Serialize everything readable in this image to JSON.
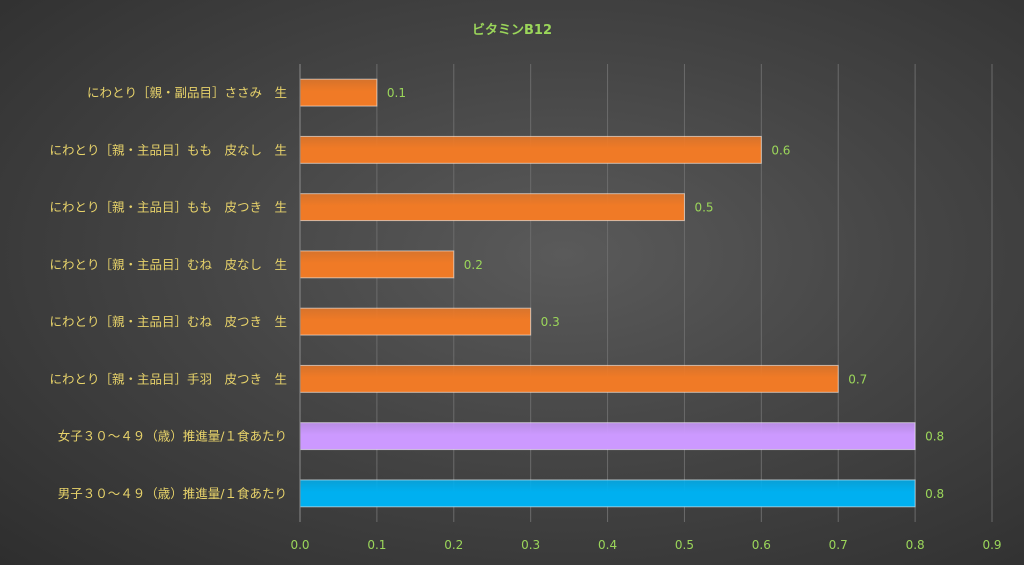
{
  "chart_data": {
    "type": "bar",
    "orientation": "horizontal",
    "title": "ビタミンB12",
    "categories": [
      "にわとり［親・副品目］ささみ　生",
      "にわとり［親・主品目］もも　皮なし　生",
      "にわとり［親・主品目］もも　皮つき　生",
      "にわとり［親・主品目］むね　皮なし　生",
      "にわとり［親・主品目］むね　皮つき　生",
      "にわとり［親・主品目］手羽　皮つき　生",
      "女子３０～４９（歳）推進量/１食あたり",
      "男子３０～４９（歳）推進量/１食あたり"
    ],
    "values": [
      0.1,
      0.6,
      0.5,
      0.2,
      0.3,
      0.7,
      0.8,
      0.8
    ],
    "value_labels": [
      "0.1",
      "0.6",
      "0.5",
      "0.2",
      "0.3",
      "0.7",
      "0.8",
      "0.8"
    ],
    "bar_colors": [
      "#f07a26",
      "#f07a26",
      "#f07a26",
      "#f07a26",
      "#f07a26",
      "#f07a26",
      "#cc99ff",
      "#00b0f0"
    ],
    "xlim": [
      0,
      0.9
    ],
    "xticks": [
      0,
      0.1,
      0.2,
      0.3,
      0.4,
      0.5,
      0.6,
      0.7,
      0.8,
      0.9
    ],
    "xtick_labels": [
      "0.0",
      "0.1",
      "0.2",
      "0.3",
      "0.4",
      "0.5",
      "0.6",
      "0.7",
      "0.8",
      "0.9"
    ],
    "grid": true,
    "legend": "none"
  }
}
